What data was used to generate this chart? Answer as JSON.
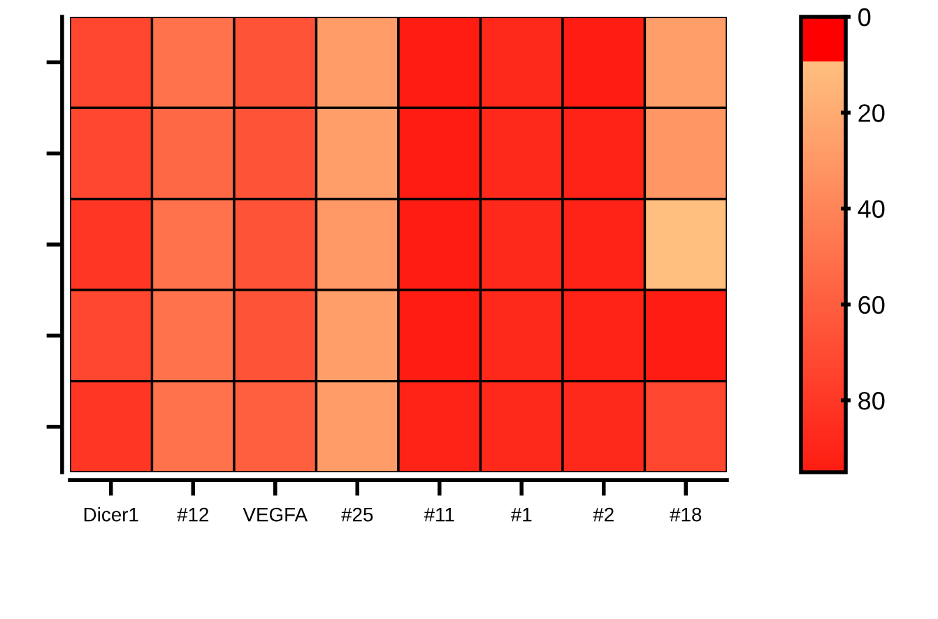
{
  "chart_data": {
    "type": "heatmap",
    "categories": [
      "Dicer1",
      "#12",
      "VEGFA",
      "#25",
      "#11",
      "#1",
      "#2",
      "#18"
    ],
    "y_categories": [
      null,
      null,
      null,
      null,
      null
    ],
    "cells": [
      [
        73,
        50,
        66,
        28,
        95,
        88,
        95,
        27
      ],
      [
        73,
        55,
        66,
        27,
        95,
        88,
        91,
        31
      ],
      [
        81,
        50,
        66,
        30,
        95,
        88,
        91,
        10
      ],
      [
        73,
        50,
        66,
        27,
        95,
        88,
        91,
        95
      ],
      [
        81,
        50,
        60,
        28,
        91,
        88,
        88,
        73
      ]
    ],
    "clim": [
      0,
      95
    ],
    "cticks": [
      0,
      20,
      40,
      60,
      80
    ],
    "colors": [
      "#ff0000",
      "#ffc080",
      "#ff1c12"
    ],
    "tick_labels": "x"
  }
}
